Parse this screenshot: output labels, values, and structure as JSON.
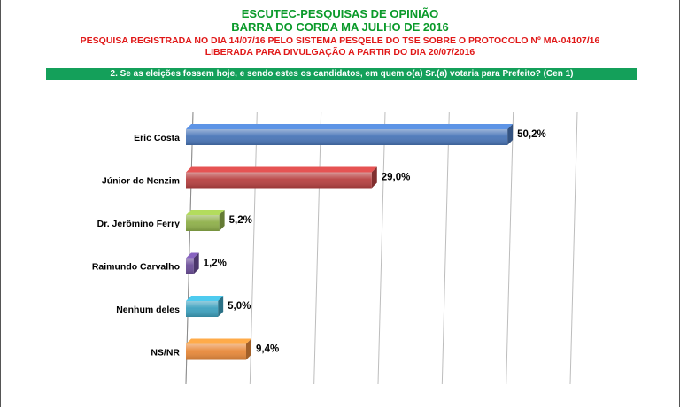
{
  "header": {
    "title": "ESCUTEC-PESQUISAS DE OPINIÃO",
    "subtitle": "BARRA DO CORDA MA JULHO DE 2016",
    "registration": "PESQUISA REGISTRADA NO DIA 14/07/16 PELO SISTEMA PESQELE DO TSE SOBRE O PROTOCOLO Nº MA-04107/16",
    "release": "LIBERADA PARA DIVULGAÇÃO A PARTIR DO DIA 20/07/2016"
  },
  "question": "2. Se as eleições fossem hoje, e sendo estes os candidatos, em quem o(a) Sr.(a) votaria para Prefeito? (Cen 1)",
  "colors": {
    "title": "#0a9a2a",
    "notice": "#e01818",
    "question_bg": "#14a05a"
  },
  "chart_data": {
    "type": "bar",
    "orientation": "horizontal",
    "categories": [
      "Eric Costa",
      "Júnior do Nenzim",
      "Dr. Jerômino Ferry",
      "Raimundo Carvalho",
      "Nenhum deles",
      "NS/NR"
    ],
    "values": [
      50.2,
      29.0,
      5.2,
      1.2,
      5.0,
      9.4
    ],
    "value_labels": [
      "50,2%",
      "29,0%",
      "5,2%",
      "1,2%",
      "5,0%",
      "9,4%"
    ],
    "bar_colors": [
      "#4a76b8",
      "#b84242",
      "#8fb04a",
      "#6d4f9a",
      "#3ea2bf",
      "#e8893a"
    ],
    "xlim": [
      0,
      60
    ],
    "grid": true,
    "legend": "none"
  }
}
